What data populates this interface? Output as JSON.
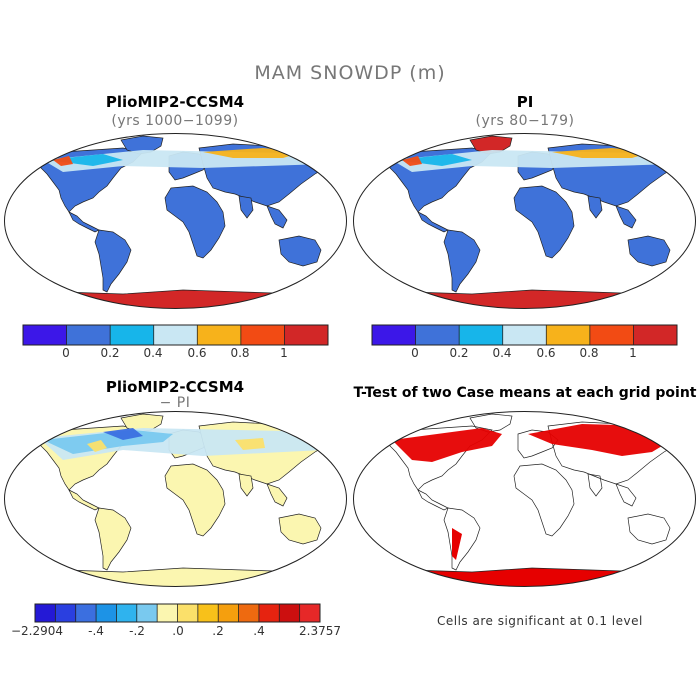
{
  "title": "MAM SNOWDP (m)",
  "panels": [
    {
      "id": "a",
      "title": "PlioMIP2-CCSM4",
      "subtitle": "(yrs 1000−1099)"
    },
    {
      "id": "b",
      "title": "PI",
      "subtitle": "(yrs 80−179)"
    },
    {
      "id": "c",
      "title": "PlioMIP2-CCSM4",
      "subtitle": "− PI"
    },
    {
      "id": "d",
      "title": "T-Test of two Case means at each grid point",
      "subtitle": ""
    }
  ],
  "colorbar_abs": {
    "colors": [
      "#3c17e8",
      "#3f72d9",
      "#17b5ea",
      "#c9e7f3",
      "#f7b21b",
      "#f24b14",
      "#d22727"
    ],
    "labels": [
      "0",
      "0.2",
      "0.4",
      "0.6",
      "0.8",
      "1"
    ]
  },
  "colorbar_diff": {
    "colors": [
      "#2419d6",
      "#2a3fe0",
      "#3b6fe0",
      "#1d93e6",
      "#2fb3ee",
      "#79c9ef",
      "#fbf6b0",
      "#fbe06a",
      "#f8c11a",
      "#f59f0e",
      "#ee6a10",
      "#e62310",
      "#cc0f0f",
      "#e62828"
    ],
    "labels": [
      "−2.2904",
      "-.4",
      "-.2",
      ".0",
      ".2",
      ".4",
      "2.3757"
    ]
  },
  "significance_note": "Cells are significant at 0.1 level",
  "colors": {
    "land_low": "#3f72d9",
    "land_diff_low": "#fbf6b0",
    "significant": "#e60000",
    "coast": "#222222"
  }
}
